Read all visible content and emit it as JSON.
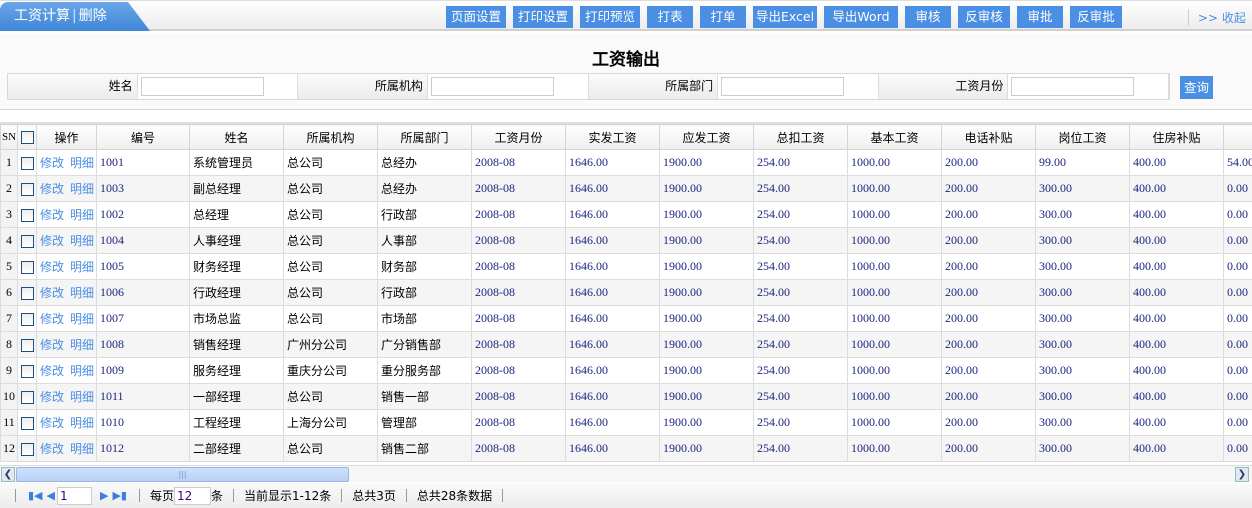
{
  "tab": {
    "title": "工资计算",
    "delete": "删除"
  },
  "toolbar": [
    "页面设置",
    "打印设置",
    "打印预览",
    "打表",
    "打单",
    "导出Excel",
    "导出Word",
    "审核",
    "反审核",
    "审批",
    "反审批"
  ],
  "collapse": ">> 收起",
  "panel": {
    "title": "工资输出",
    "fields": [
      {
        "label": "姓名",
        "value": ""
      },
      {
        "label": "所属机构",
        "value": ""
      },
      {
        "label": "所属部门",
        "value": ""
      },
      {
        "label": "工资月份",
        "value": ""
      }
    ],
    "query": "查询"
  },
  "table": {
    "headers": [
      "SN",
      "",
      "操作",
      "编号",
      "姓名",
      "所属机构",
      "所属部门",
      "工资月份",
      "实发工资",
      "应发工资",
      "总扣工资",
      "基本工资",
      "电话补贴",
      "岗位工资",
      "住房补贴",
      ""
    ],
    "op_edit": "修改",
    "op_detail": "明细",
    "rows": [
      [
        "1",
        "1001",
        "系统管理员",
        "总公司",
        "总经办",
        "2008-08",
        "1646.00",
        "1900.00",
        "254.00",
        "1000.00",
        "200.00",
        "99.00",
        "400.00",
        "54.00"
      ],
      [
        "2",
        "1003",
        "副总经理",
        "总公司",
        "总经办",
        "2008-08",
        "1646.00",
        "1900.00",
        "254.00",
        "1000.00",
        "200.00",
        "300.00",
        "400.00",
        "0.00"
      ],
      [
        "3",
        "1002",
        "总经理",
        "总公司",
        "行政部",
        "2008-08",
        "1646.00",
        "1900.00",
        "254.00",
        "1000.00",
        "200.00",
        "300.00",
        "400.00",
        "0.00"
      ],
      [
        "4",
        "1004",
        "人事经理",
        "总公司",
        "人事部",
        "2008-08",
        "1646.00",
        "1900.00",
        "254.00",
        "1000.00",
        "200.00",
        "300.00",
        "400.00",
        "0.00"
      ],
      [
        "5",
        "1005",
        "财务经理",
        "总公司",
        "财务部",
        "2008-08",
        "1646.00",
        "1900.00",
        "254.00",
        "1000.00",
        "200.00",
        "300.00",
        "400.00",
        "0.00"
      ],
      [
        "6",
        "1006",
        "行政经理",
        "总公司",
        "行政部",
        "2008-08",
        "1646.00",
        "1900.00",
        "254.00",
        "1000.00",
        "200.00",
        "300.00",
        "400.00",
        "0.00"
      ],
      [
        "7",
        "1007",
        "市场总监",
        "总公司",
        "市场部",
        "2008-08",
        "1646.00",
        "1900.00",
        "254.00",
        "1000.00",
        "200.00",
        "300.00",
        "400.00",
        "0.00"
      ],
      [
        "8",
        "1008",
        "销售经理",
        "广州分公司",
        "广分销售部",
        "2008-08",
        "1646.00",
        "1900.00",
        "254.00",
        "1000.00",
        "200.00",
        "300.00",
        "400.00",
        "0.00"
      ],
      [
        "9",
        "1009",
        "服务经理",
        "重庆分公司",
        "重分服务部",
        "2008-08",
        "1646.00",
        "1900.00",
        "254.00",
        "1000.00",
        "200.00",
        "300.00",
        "400.00",
        "0.00"
      ],
      [
        "10",
        "1011",
        "一部经理",
        "总公司",
        "销售一部",
        "2008-08",
        "1646.00",
        "1900.00",
        "254.00",
        "1000.00",
        "200.00",
        "300.00",
        "400.00",
        "0.00"
      ],
      [
        "11",
        "1010",
        "工程经理",
        "上海分公司",
        "管理部",
        "2008-08",
        "1646.00",
        "1900.00",
        "254.00",
        "1000.00",
        "200.00",
        "300.00",
        "400.00",
        "0.00"
      ],
      [
        "12",
        "1012",
        "二部经理",
        "总公司",
        "销售二部",
        "2008-08",
        "1646.00",
        "1900.00",
        "254.00",
        "1000.00",
        "200.00",
        "300.00",
        "400.00",
        "0.00"
      ]
    ]
  },
  "footer": {
    "page": "1",
    "per_page_label": "每页",
    "per_page": "12",
    "unit": "条",
    "showing": "当前显示1-12条",
    "total_pages": "总共3页",
    "total_records": "总共28条数据"
  }
}
